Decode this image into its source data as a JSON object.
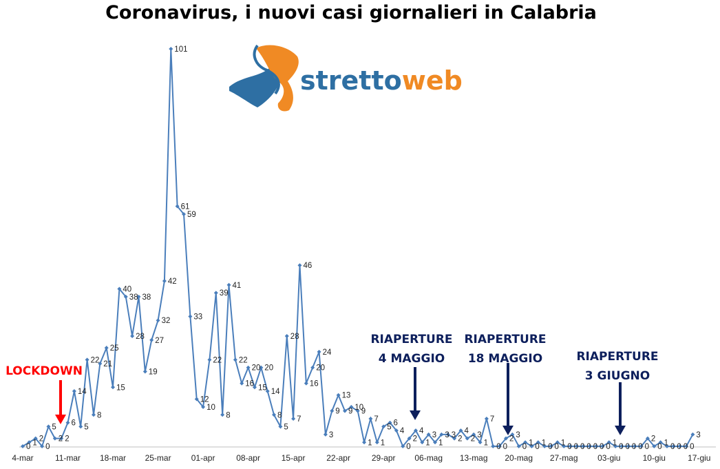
{
  "title": "Coronavirus, i nuovi casi giornalieri in Calabria",
  "logo": {
    "part1": "stretto",
    "part2": "web"
  },
  "annotations": {
    "lockdown": "LOCKDOWN",
    "r1_line1": "RIAPERTURE",
    "r1_line2": "4 MAGGIO",
    "r2_line1": "RIAPERTURE",
    "r2_line2": "18 MAGGIO",
    "r3_line1": "RIAPERTURE",
    "r3_line2": "3 GIUGNO"
  },
  "colors": {
    "line": "#4A7EBB",
    "lockdown": "#FF0000",
    "riaperture": "#0D1F5C",
    "logo_blue": "#2E6FA3",
    "logo_orange": "#F08A24"
  },
  "chart_data": {
    "type": "line",
    "start_date": "4-mar",
    "x_tick_labels": [
      "4-mar",
      "11-mar",
      "18-mar",
      "25-mar",
      "01-apr",
      "08-apr",
      "15-apr",
      "22-apr",
      "29-apr",
      "06-mag",
      "13-mag",
      "20-mag",
      "27-mag",
      "03-giu",
      "10-giu",
      "17-giu"
    ],
    "values": [
      0,
      1,
      2,
      0,
      5,
      2,
      2,
      6,
      14,
      5,
      22,
      8,
      21,
      25,
      15,
      40,
      38,
      28,
      38,
      19,
      27,
      32,
      42,
      101,
      61,
      59,
      33,
      12,
      10,
      22,
      39,
      8,
      41,
      22,
      16,
      20,
      15,
      20,
      14,
      8,
      5,
      28,
      7,
      46,
      16,
      20,
      24,
      3,
      9,
      13,
      9,
      10,
      9,
      1,
      7,
      1,
      5,
      6,
      4,
      0,
      2,
      4,
      1,
      3,
      1,
      3,
      3,
      2,
      4,
      2,
      3,
      1,
      7,
      0,
      0,
      2,
      3,
      0,
      1,
      0,
      1,
      0,
      0,
      1,
      0,
      0,
      0,
      0,
      0,
      0,
      0,
      1,
      0,
      0,
      0,
      0,
      0,
      2,
      0,
      1,
      0,
      0,
      0,
      0,
      3
    ],
    "y_range": [
      0,
      101
    ],
    "grid": false,
    "legend": "none"
  }
}
